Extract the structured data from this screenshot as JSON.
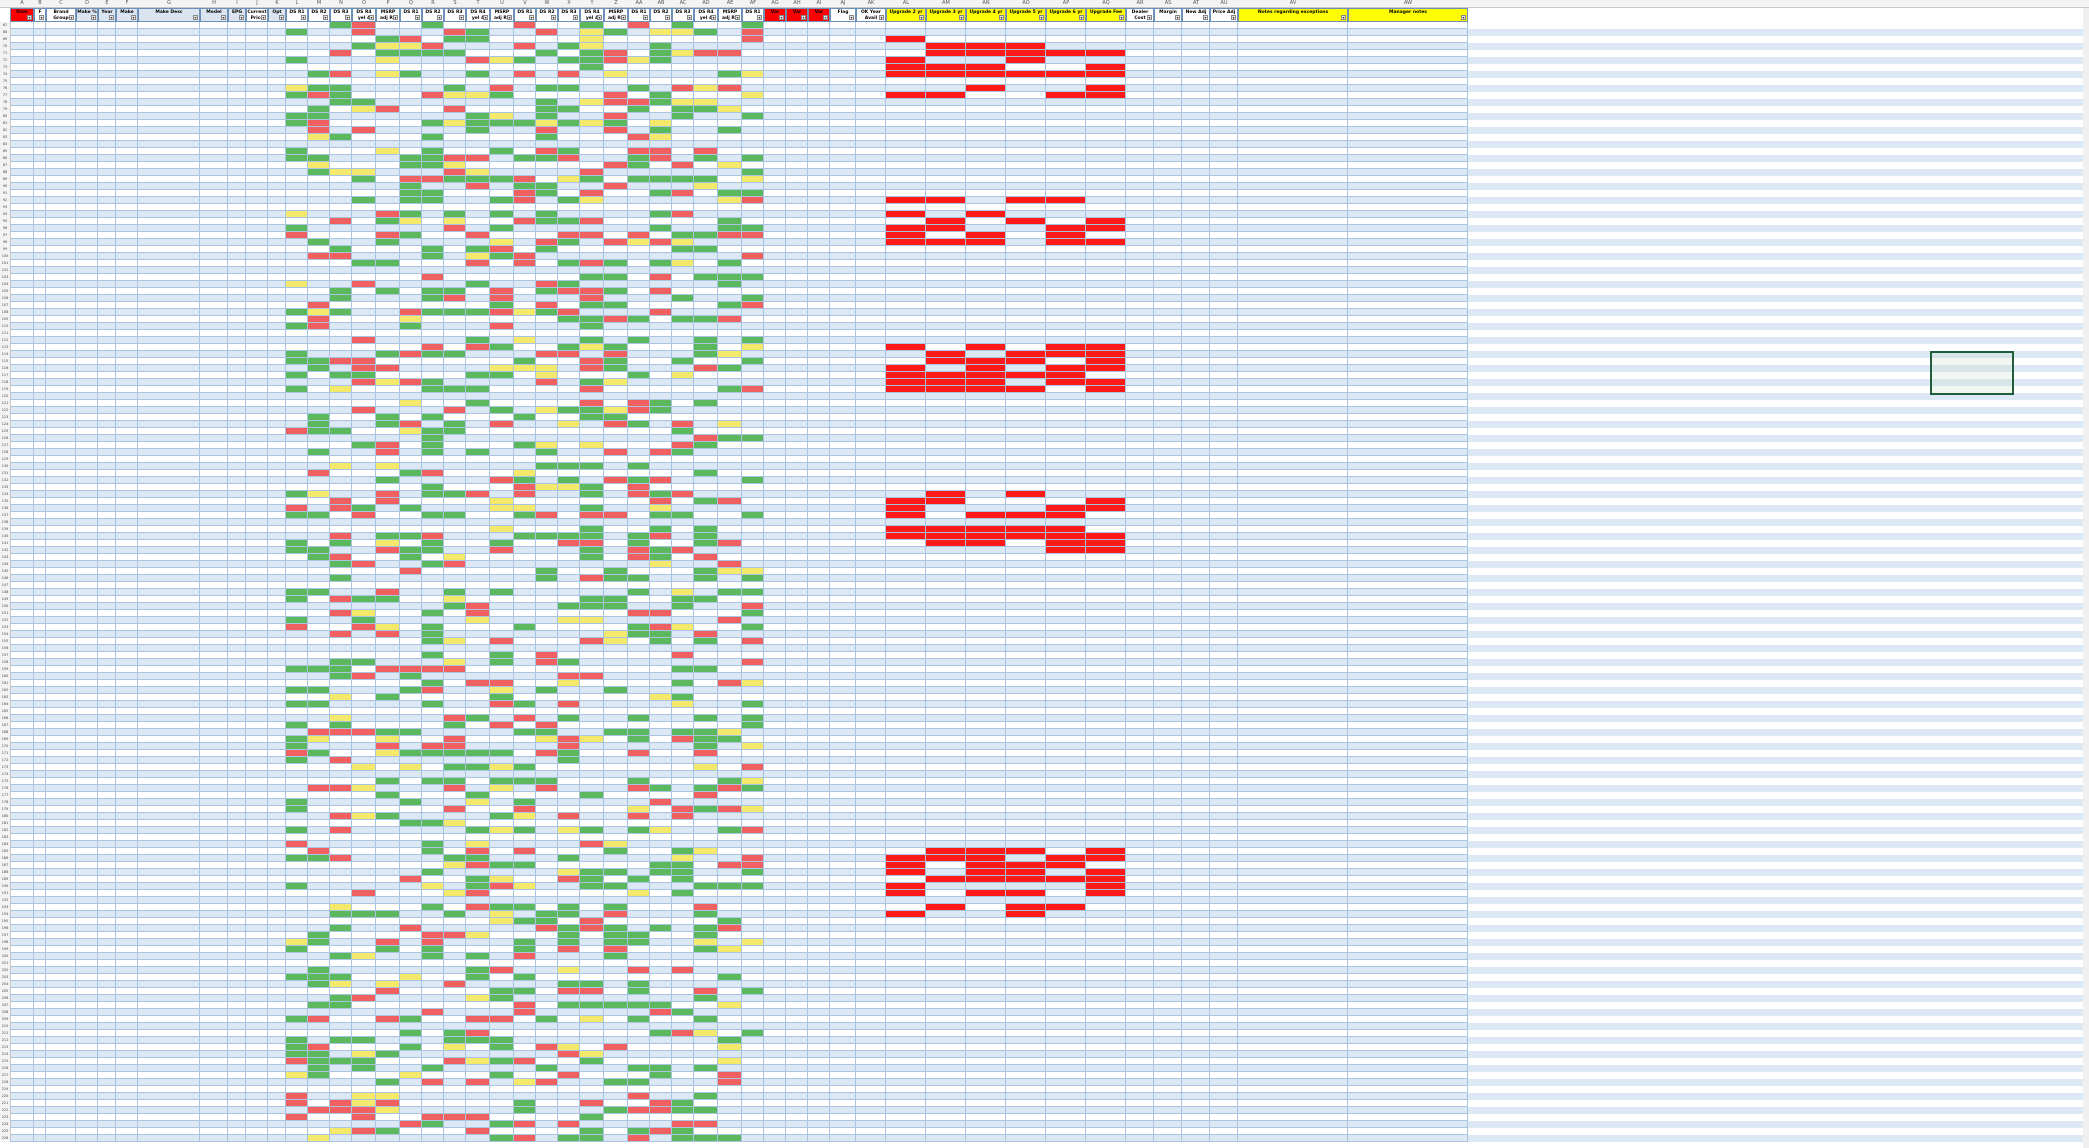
{
  "sheet": {
    "column_letters": [
      "A",
      "B",
      "C",
      "D",
      "E",
      "F",
      "G",
      "H",
      "I",
      "J",
      "K",
      "L",
      "M",
      "N",
      "O",
      "P",
      "Q",
      "R",
      "S",
      "T",
      "U",
      "V",
      "W",
      "X",
      "Y",
      "Z",
      "AA",
      "AB",
      "AC",
      "AD",
      "AE",
      "AF",
      "AG",
      "AH",
      "AI",
      "AJ",
      "AK",
      "AL",
      "AM",
      "AN",
      "AO",
      "AP",
      "AQ",
      "AR",
      "AS",
      "AT",
      "AU",
      "AV",
      "AW",
      "AX",
      "AY",
      "AZ",
      "BA",
      "BB",
      "BC",
      "BD",
      "BE",
      "BF",
      "BG",
      "BH",
      "BI",
      "BJ",
      "BK",
      "BL",
      "BM",
      "BN",
      "BO",
      "BP",
      "BQ",
      "BR",
      "BS",
      "BT",
      "BU",
      "BV",
      "BW"
    ],
    "headers": [
      {
        "label": "Item",
        "color": "#ff0000"
      },
      {
        "label": "F",
        "color": "#ffffff"
      },
      {
        "label": "Brand Group",
        "color": "#ffffff"
      },
      {
        "label": "Make %",
        "color": "#dbe5f1"
      },
      {
        "label": "Year",
        "color": "#dbe5f1"
      },
      {
        "label": "Make",
        "color": "#dbe5f1"
      },
      {
        "label": "Make Desc",
        "color": "#dbe5f1"
      },
      {
        "label": "Model",
        "color": "#dbe5f1"
      },
      {
        "label": "EPG",
        "color": "#dbe5f1"
      },
      {
        "label": "Current Price",
        "color": "#ffffff"
      },
      {
        "label": "Opt",
        "color": "#dbe5f1"
      },
      {
        "label": "DS R1",
        "color": "#ffffff"
      },
      {
        "label": "DS R2",
        "color": "#ffffff"
      },
      {
        "label": "DS R3",
        "color": "#ffffff"
      },
      {
        "label": "DS R4 yel 4",
        "color": "#ffffff"
      },
      {
        "label": "MSRP adj R6",
        "color": "#ffffff"
      },
      {
        "label": "DS R1",
        "color": "#ffffff"
      },
      {
        "label": "DS R2",
        "color": "#ffffff"
      },
      {
        "label": "DS R3",
        "color": "#ffffff"
      },
      {
        "label": "DS R4 yel 4",
        "color": "#ffffff"
      },
      {
        "label": "MSRP adj R6",
        "color": "#ffffff"
      },
      {
        "label": "DS R1",
        "color": "#ffffff"
      },
      {
        "label": "DS R2",
        "color": "#ffffff"
      },
      {
        "label": "DS R3",
        "color": "#ffffff"
      },
      {
        "label": "DS R4 yel 4",
        "color": "#ffffff"
      },
      {
        "label": "MSRP adj R6",
        "color": "#ffffff"
      },
      {
        "label": "DS R1",
        "color": "#ffffff"
      },
      {
        "label": "DS R2",
        "color": "#ffffff"
      },
      {
        "label": "DS R3",
        "color": "#ffffff"
      },
      {
        "label": "DS R4 yel 4",
        "color": "#ffffff"
      },
      {
        "label": "MSRP adj R6",
        "color": "#ffffff"
      },
      {
        "label": "DS R1",
        "color": "#ffffff"
      },
      {
        "label": "Var",
        "color": "#ff0000"
      },
      {
        "label": "Var",
        "color": "#ff0000"
      },
      {
        "label": "Var",
        "color": "#ff0000"
      },
      {
        "label": "Flag",
        "color": "#ffffff"
      },
      {
        "label": "OK Year Avail",
        "color": "#ffffff"
      },
      {
        "label": "Upgrade 2 yr",
        "color": "#ffff00"
      },
      {
        "label": "Upgrade 3 yr",
        "color": "#ffff00"
      },
      {
        "label": "Upgrade 4 yr",
        "color": "#ffff00"
      },
      {
        "label": "Upgrade 5 yr",
        "color": "#ffff00"
      },
      {
        "label": "Upgrade 6 yr",
        "color": "#ffff00"
      },
      {
        "label": "Upgrade Fee",
        "color": "#ffff00"
      },
      {
        "label": "Dealer Cost",
        "color": "#ffffff"
      },
      {
        "label": "Margin",
        "color": "#ffffff"
      },
      {
        "label": "New Adj",
        "color": "#ffffff"
      },
      {
        "label": "Price Adj",
        "color": "#ffffff"
      },
      {
        "label": "Notes regarding exceptions",
        "color": "#ffff00"
      },
      {
        "label": "Manager notes",
        "color": "#ffff00"
      }
    ]
  },
  "rows": {
    "count": 160,
    "start_number": 67
  },
  "palette": {
    "green": "#5cb85c",
    "red": "#f06060",
    "yellow": "#f5e96b",
    "bright_red": "#ff1a1a",
    "row_stripe": "#dde8f5",
    "grid_line": "#a9c4e0",
    "header_border": "#6d8fb8"
  }
}
